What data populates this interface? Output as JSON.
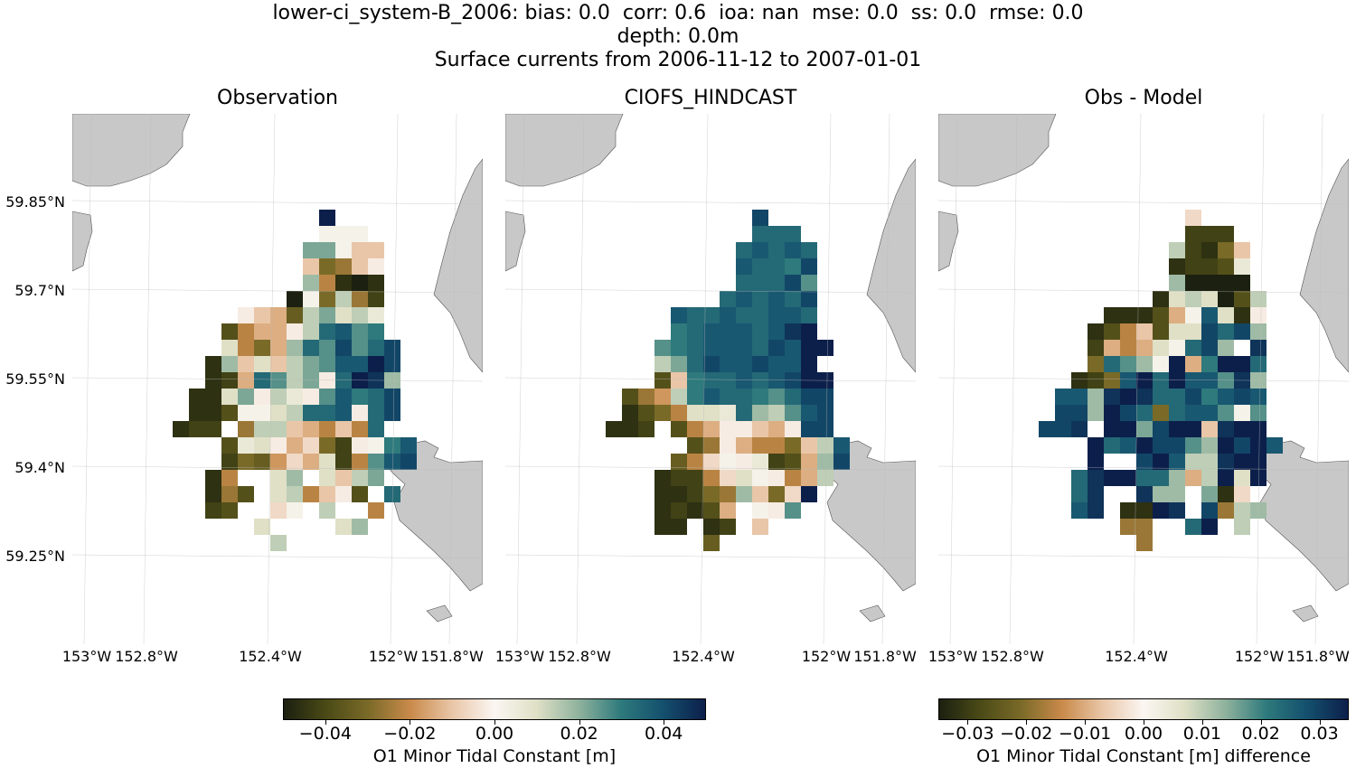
{
  "header": {
    "line1": "lower-ci_system-B_2006: bias: 0.0  corr: 0.6  ioa: nan  mse: 0.0  ss: 0.0  rmse: 0.0",
    "line2": "depth: 0.0m",
    "line3": "Surface currents from 2006-11-12 to 2007-01-01"
  },
  "panels": [
    {
      "title": "Observation"
    },
    {
      "title": "CIOFS_HINDCAST"
    },
    {
      "title": "Obs - Model"
    }
  ],
  "axes": {
    "lat_labels": [
      "59.85°N",
      "59.7°N",
      "59.55°N",
      "59.4°N",
      "59.25°N"
    ],
    "lon_labels": [
      "153°W",
      "152.8°W",
      "152.4°W",
      "152°W",
      "151.8°W"
    ]
  },
  "colorbars": [
    {
      "label": "O1 Minor Tidal Constant [m]",
      "ticks": [
        "−0.04",
        "−0.02",
        "0.00",
        "0.02",
        "0.04"
      ],
      "range": [
        -0.05,
        0.05
      ]
    },
    {
      "label": "O1 Minor Tidal Constant [m] difference",
      "ticks": [
        "−0.03",
        "−0.02",
        "−0.01",
        "0.00",
        "0.01",
        "0.02",
        "0.03"
      ],
      "range": [
        -0.035,
        0.035
      ]
    }
  ],
  "colors": {
    "land": "#c8c8c8",
    "colormap": [
      "#1b2010",
      "#4a4a16",
      "#7a6a28",
      "#c98a4a",
      "#e9c6a8",
      "#fbf6f2",
      "#dfe0c6",
      "#8fb29d",
      "#2e7a7c",
      "#14506e",
      "#0c1f4b"
    ]
  },
  "chart_data": {
    "type": "heatmap",
    "grid": {
      "lon_start": -152.6,
      "lon_step": 0.05,
      "lat_start": 59.81,
      "lat_step": -0.027
    },
    "observation_rows": [
      "..........z.....",
      "..........nnn...",
      ".........ssnkk..",
      ".........kfgkm..",
      ".........rhbab..",
      "........anfqgc..",
      ".....mkjeqspqo..",
      "....dhjjmqvwtu..",
      "....phfjrvtxtvx.",
      "...brkpkqstwwzx.",
      "...bcjvtqsmvzyr.",
      "..bbpsmqomtwuvx.",
      "..bbdnnpqvvwmvx.",
      ".bcc.gqqkjhkhv..",
      "....dopmjlfcmnuw",
      "....cfeiljpchtwx",
      "...bh..pr.pkqs..",
      "...bgd.pqhkmd.v.",
      "...cd..ln.q..h..",
      "......p....pr...",
      ".......q........"
    ],
    "model_rows": [
      "..........x.....",
      "..........vvv...",
      ".........vwvwv..",
      ".........wvvux..",
      ".........vvvxt..",
      "........vwvwvx..",
      ".....wvvwvvwwv..",
      ".....uvwwwvwyz..",
      "....tuvwwwvxwzz.",
      "....qsvxwwxwwz..",
      "....dkuvvwvwxzz.",
      "..dgiquwvvutvxx.",
      "..bdfhppovrqtwx.",
      ".bbc.dhjmmkjmxx.",
      "......dgmjhhfkqw",
      ".....ehlnmocdjrx",
      "....bcchlpnmhjq.",
      "....bbcfgrkflz..",
      "....bcbdj.nmt...",
      "....bb.bc.k.....",
      ".......e........"
    ],
    "difference_rows": [
      "..........l.....",
      "..........ccc...",
      ".........qcbfk..",
      ".........bccdo..",
      ".........raaaa..",
      "........bpqpadq.",
      ".....bbbdjnwpbm.",
      "....bdhkdppxvxr.",
      "....cjhjpnvxr.y.",
      "....fvtrnzjuzzv.",
      "...bcfwzvzwwtyr.",
      "..wwryzyvvxuwxw.",
      "..xxrzxvfvwwtnt.",
      ".xxy.zzsxzzkyzz.",
      "....zvwzxxtrzxzw",
      "....z..xzwqqyzz.",
      "...vyzzvvrjqzpz.",
      "...vy..yrr.sbl..",
      "...wy.bbzy.xgqr.",
      "......gg..vz.q..",
      ".......g........"
    ]
  }
}
